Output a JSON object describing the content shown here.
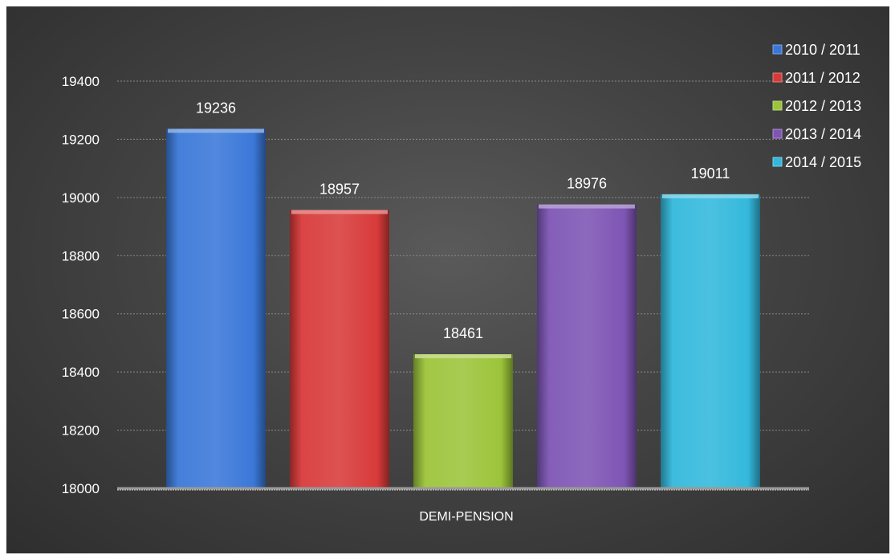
{
  "chart_data": {
    "type": "bar",
    "categories": [
      "DEMI-PENSION"
    ],
    "series": [
      {
        "name": "2010 / 2011",
        "values": [
          19236
        ],
        "color": "#3a78d8"
      },
      {
        "name": "2011 / 2012",
        "values": [
          18957
        ],
        "color": "#d83a3a"
      },
      {
        "name": "2012 / 2013",
        "values": [
          18461
        ],
        "color": "#9cc43a"
      },
      {
        "name": "2013 / 2014",
        "values": [
          18976
        ],
        "color": "#7e55b4"
      },
      {
        "name": "2014 / 2015",
        "values": [
          19011
        ],
        "color": "#33b8dc"
      }
    ],
    "ylim": [
      18000,
      19400
    ],
    "yticks": [
      18000,
      18200,
      18400,
      18600,
      18800,
      19000,
      19200,
      19400
    ],
    "title": "",
    "xlabel": "",
    "ylabel": "",
    "grid": true,
    "legend_position": "right"
  }
}
